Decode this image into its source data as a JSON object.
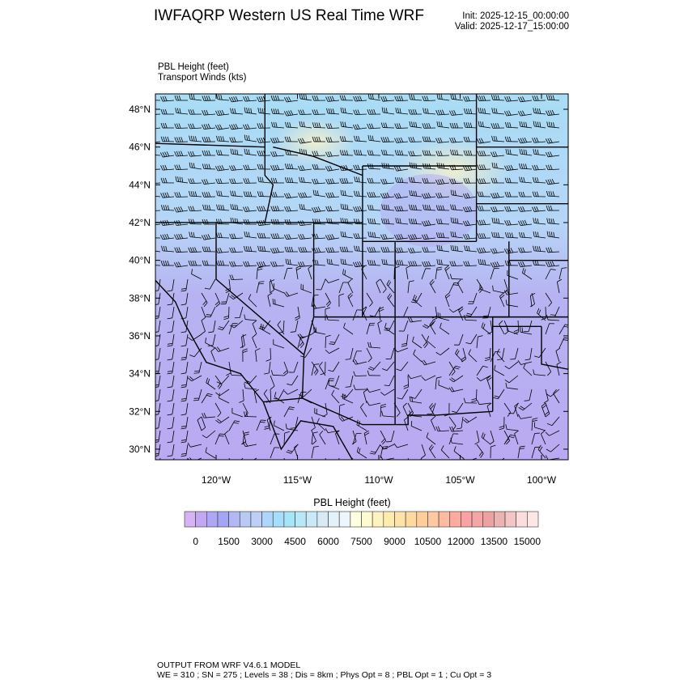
{
  "header": {
    "title": "IWFAQRP Western US Real Time WRF",
    "init": "Init: 2025-12-15_00:00:00",
    "valid": "Valid: 2025-12-17_15:00:00"
  },
  "fields": {
    "line1": "PBL Height   (feet)",
    "line2": "Transport Winds   (kts)"
  },
  "map": {
    "lat_ticks": [
      "48°N",
      "46°N",
      "44°N",
      "42°N",
      "40°N",
      "38°N",
      "36°N",
      "34°N",
      "32°N",
      "30°N"
    ],
    "lat_values": [
      48,
      46,
      44,
      42,
      40,
      38,
      36,
      34,
      32,
      30
    ],
    "lon_ticks": [
      "120°W",
      "115°W",
      "110°W",
      "105°W",
      "100°W"
    ],
    "lon_values": [
      -120,
      -115,
      -110,
      -105,
      -100
    ],
    "fill_colors": {
      "north": "#a9dcf5",
      "south": "#b9a9f2",
      "highlight": "#fff4c8"
    }
  },
  "colorbar": {
    "title": "PBL Height  (feet)",
    "labels": [
      "0",
      "1500",
      "3000",
      "4500",
      "6000",
      "7500",
      "9000",
      "10500",
      "12000",
      "13500",
      "15000"
    ],
    "colors": [
      "#d6b3f3",
      "#c2a8f3",
      "#b0a6f6",
      "#a4a6f5",
      "#b1b8f4",
      "#bac8f4",
      "#bdcff6",
      "#aed5fb",
      "#a5defa",
      "#a6e4f8",
      "#b7e8f7",
      "#c8e9f7",
      "#d7eaf6",
      "#e3f1f8",
      "#ecf6fb",
      "#fefee0",
      "#fffbd0",
      "#fff3bd",
      "#fdecad",
      "#fde3a7",
      "#fed9a0",
      "#fece9a",
      "#fec9a2",
      "#febba0",
      "#fdaa9f",
      "#fba2a2",
      "#f4a5a5",
      "#eca2a2",
      "#ecb3b3",
      "#f3c6c6",
      "#fcdcdc",
      "#fde6e6"
    ]
  },
  "footer": {
    "line1": "OUTPUT FROM WRF V4.6.1 MODEL",
    "line2": "WE = 310 ; SN = 275 ; Levels = 38 ; Dis = 8km ; Phys Opt = 8 ; PBL Opt = 1 ; Cu Opt = 3"
  }
}
